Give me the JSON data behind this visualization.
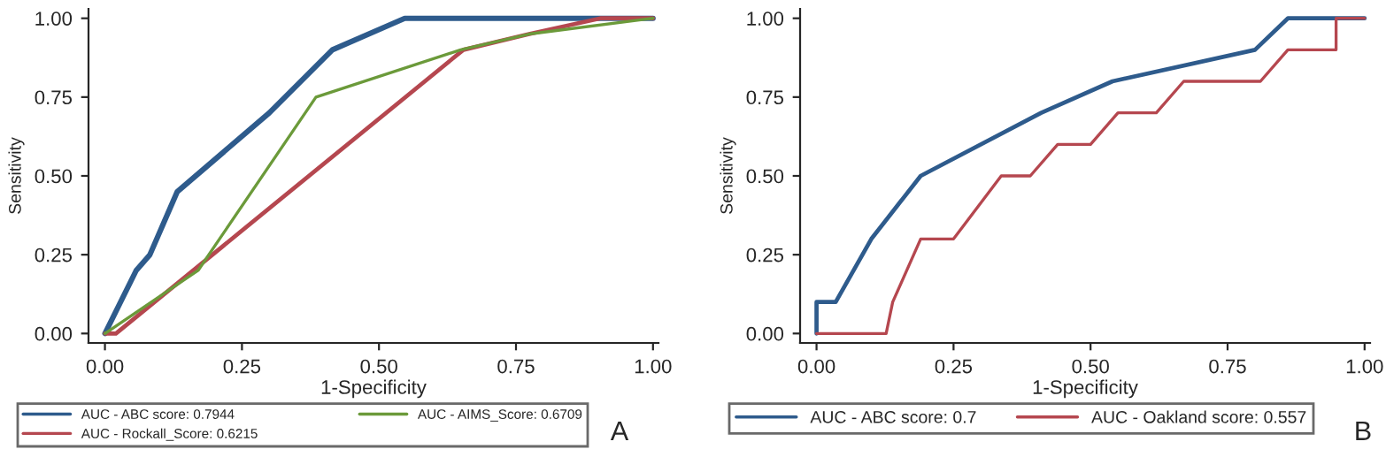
{
  "chart_data": [
    {
      "type": "line",
      "xlabel": "1-Specificity",
      "ylabel": "Sensitivity",
      "xlim": [
        -0.03,
        1.01
      ],
      "ylim": [
        -0.03,
        1.03
      ],
      "xticks": [
        {
          "value": 0,
          "label": "0.00"
        },
        {
          "value": 0.25,
          "label": "0.25"
        },
        {
          "value": 0.5,
          "label": "0.50"
        },
        {
          "value": 0.75,
          "label": "0.75"
        },
        {
          "value": 1,
          "label": "1.00"
        }
      ],
      "yticks": [
        {
          "value": 0,
          "label": "0.00"
        },
        {
          "value": 0.25,
          "label": "0.25"
        },
        {
          "value": 0.5,
          "label": "0.50"
        },
        {
          "value": 0.75,
          "label": "0.75"
        },
        {
          "value": 1,
          "label": "1.00"
        }
      ],
      "grid": false,
      "legend": "bottom",
      "annotations": [
        "A"
      ],
      "series": [
        {
          "name": "AUC - ABC score: 0.7944",
          "color": "#2e5b8c",
          "x": [
            0,
            0.057,
            0.082,
            0.132,
            0.3,
            0.415,
            0.547,
            1
          ],
          "values": [
            0,
            0.2,
            0.25,
            0.45,
            0.7,
            0.9,
            1,
            1
          ]
        },
        {
          "name": "AUC - Rockall_Score: 0.6215",
          "color": "#b5474f",
          "x": [
            0,
            0.02,
            0.654,
            0.774,
            0.904,
            1
          ],
          "values": [
            0,
            0,
            0.9,
            0.95,
            1,
            1
          ]
        },
        {
          "name": "AUC - AIMS_Score: 0.6709",
          "color": "#6b9a3a",
          "x": [
            0,
            0.17,
            0.385,
            0.649,
            0.774,
            1
          ],
          "values": [
            0,
            0.2,
            0.75,
            0.9,
            0.95,
            1
          ]
        }
      ]
    },
    {
      "type": "line",
      "xlabel": "1-Specificity",
      "ylabel": "Sensitivity",
      "xlim": [
        -0.03,
        1.01
      ],
      "ylim": [
        -0.03,
        1.03
      ],
      "xticks": [
        {
          "value": 0,
          "label": "0.00"
        },
        {
          "value": 0.25,
          "label": "0.25"
        },
        {
          "value": 0.5,
          "label": "0.50"
        },
        {
          "value": 0.75,
          "label": "0.75"
        },
        {
          "value": 1,
          "label": "1.00"
        }
      ],
      "yticks": [
        {
          "value": 0,
          "label": "0.00"
        },
        {
          "value": 0.25,
          "label": "0.25"
        },
        {
          "value": 0.5,
          "label": "0.50"
        },
        {
          "value": 0.75,
          "label": "0.75"
        },
        {
          "value": 1,
          "label": "1.00"
        }
      ],
      "grid": false,
      "legend": "bottom",
      "annotations": [
        "B"
      ],
      "series": [
        {
          "name": "AUC - ABC score: 0.7",
          "color": "#2e5b8c",
          "x": [
            0,
            0,
            0.035,
            0.1,
            0.19,
            0.41,
            0.54,
            0.8,
            0.86,
            1
          ],
          "values": [
            0,
            0.1,
            0.1,
            0.3,
            0.5,
            0.7,
            0.8,
            0.9,
            1,
            1
          ]
        },
        {
          "name": "AUC - Oakland score: 0.557",
          "color": "#b5474f",
          "x": [
            0,
            0.127,
            0.139,
            0.19,
            0.25,
            0.337,
            0.39,
            0.44,
            0.5,
            0.55,
            0.62,
            0.67,
            0.81,
            0.86,
            0.948,
            0.948,
            1
          ],
          "values": [
            0,
            0,
            0.1,
            0.3,
            0.3,
            0.5,
            0.5,
            0.6,
            0.6,
            0.7,
            0.7,
            0.8,
            0.8,
            0.9,
            0.9,
            1,
            1
          ]
        }
      ]
    }
  ]
}
